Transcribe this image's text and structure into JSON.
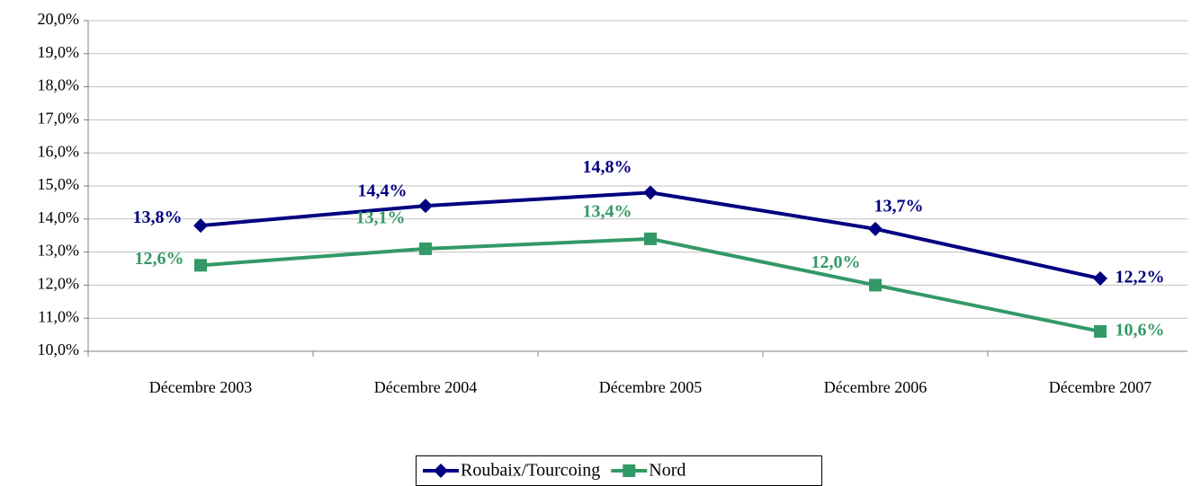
{
  "chart_data": {
    "type": "line",
    "categories": [
      "Décembre 2003",
      "Décembre 2004",
      "Décembre 2005",
      "Décembre 2006",
      "Décembre 2007"
    ],
    "series": [
      {
        "name": "Roubaix/Tourcoing",
        "color": "#000080",
        "marker": "diamond",
        "values": [
          13.8,
          14.4,
          14.8,
          13.7,
          12.2
        ],
        "value_labels": [
          "13,8%",
          "14,4%",
          "14,8%",
          "13,7%",
          "12,2%"
        ]
      },
      {
        "name": "Nord",
        "color": "#339966",
        "marker": "square",
        "values": [
          12.6,
          13.1,
          13.4,
          12.0,
          10.6
        ],
        "value_labels": [
          "12,6%",
          "13,1%",
          "13,4%",
          "12,0%",
          "10,6%"
        ]
      }
    ],
    "ylim": [
      10,
      20
    ],
    "yticks": [
      {
        "value": 10,
        "label": "10,0%"
      },
      {
        "value": 11,
        "label": "11,0%"
      },
      {
        "value": 12,
        "label": "12,0%"
      },
      {
        "value": 13,
        "label": "13,0%"
      },
      {
        "value": 14,
        "label": "14,0%"
      },
      {
        "value": 15,
        "label": "15,0%"
      },
      {
        "value": 16,
        "label": "16,0%"
      },
      {
        "value": 17,
        "label": "17,0%"
      },
      {
        "value": 18,
        "label": "18,0%"
      },
      {
        "value": 19,
        "label": "19,0%"
      },
      {
        "value": 20,
        "label": "20,0%"
      }
    ],
    "grid": true,
    "legend": "bottom"
  }
}
